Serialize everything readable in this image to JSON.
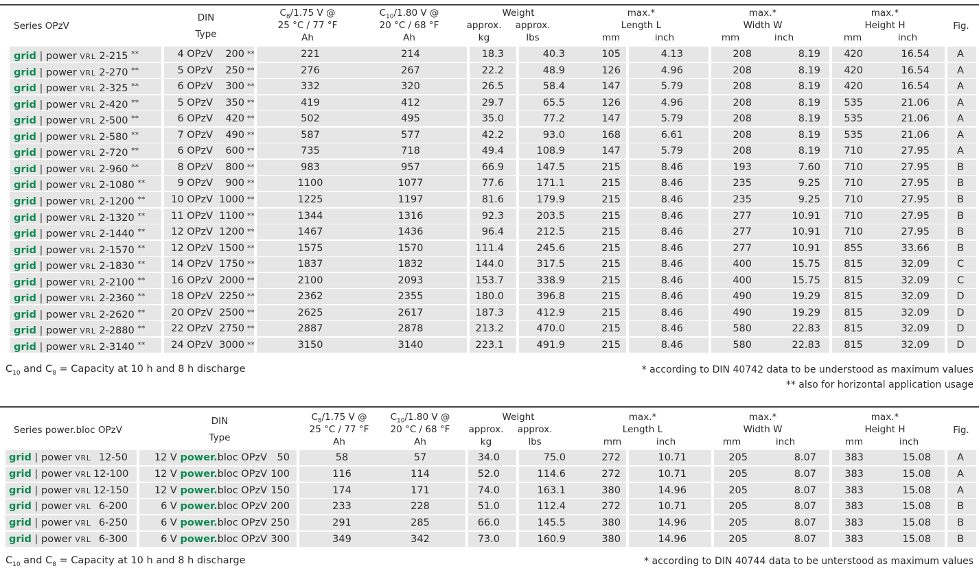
{
  "table1": {
    "series_label": "Series OPzV",
    "din_label": "DIN",
    "type_label": "Type",
    "c8": {
      "pre": "C",
      "sub": "8",
      "post": "/1.75 V @",
      "line2": "25 °C / 77 °F",
      "unit": "Ah"
    },
    "c10": {
      "pre": "C",
      "sub": "10",
      "post": "/1.80 V @",
      "line2": "20 °C / 68 °F",
      "unit": "Ah"
    },
    "weight": {
      "label": "Weight",
      "approx1": "approx.",
      "approx2": "approx.",
      "kg": "kg",
      "lbs": "lbs"
    },
    "length": {
      "max": "max.*",
      "label": "Length L",
      "mm": "mm",
      "inch": "inch"
    },
    "width": {
      "max": "max.*",
      "label": "Width W",
      "mm": "mm",
      "inch": "inch"
    },
    "height": {
      "max": "max.*",
      "label": "Height H",
      "mm": "mm",
      "inch": "inch"
    },
    "fig_label": "Fig.",
    "rows": [
      {
        "grid": "grid",
        "power": "power",
        "vrl": "VRL",
        "model": "2-215",
        "stars": "**",
        "din": "4 OPzV",
        "dinv": "200",
        "dinstars": "**",
        "c8": "221",
        "c10": "214",
        "kg": "18.3",
        "lbs": "40.3",
        "lmm": "105",
        "lin": "4.13",
        "wmm": "208",
        "win": "8.19",
        "hmm": "420",
        "hin": "16.54",
        "fig": "A"
      },
      {
        "grid": "grid",
        "power": "power",
        "vrl": "VRL",
        "model": "2-270",
        "stars": "**",
        "din": "5 OPzV",
        "dinv": "250",
        "dinstars": "**",
        "c8": "276",
        "c10": "267",
        "kg": "22.2",
        "lbs": "48.9",
        "lmm": "126",
        "lin": "4.96",
        "wmm": "208",
        "win": "8.19",
        "hmm": "420",
        "hin": "16.54",
        "fig": "A"
      },
      {
        "grid": "grid",
        "power": "power",
        "vrl": "VRL",
        "model": "2-325",
        "stars": "**",
        "din": "6 OPzV",
        "dinv": "300",
        "dinstars": "**",
        "c8": "332",
        "c10": "320",
        "kg": "26.5",
        "lbs": "58.4",
        "lmm": "147",
        "lin": "5.79",
        "wmm": "208",
        "win": "8.19",
        "hmm": "420",
        "hin": "16.54",
        "fig": "A"
      },
      {
        "grid": "grid",
        "power": "power",
        "vrl": "VRL",
        "model": "2-420",
        "stars": "**",
        "din": "5 OPzV",
        "dinv": "350",
        "dinstars": "**",
        "c8": "419",
        "c10": "412",
        "kg": "29.7",
        "lbs": "65.5",
        "lmm": "126",
        "lin": "4.96",
        "wmm": "208",
        "win": "8.19",
        "hmm": "535",
        "hin": "21.06",
        "fig": "A"
      },
      {
        "grid": "grid",
        "power": "power",
        "vrl": "VRL",
        "model": "2-500",
        "stars": "**",
        "din": "6 OPzV",
        "dinv": "420",
        "dinstars": "**",
        "c8": "502",
        "c10": "495",
        "kg": "35.0",
        "lbs": "77.2",
        "lmm": "147",
        "lin": "5.79",
        "wmm": "208",
        "win": "8.19",
        "hmm": "535",
        "hin": "21.06",
        "fig": "A"
      },
      {
        "grid": "grid",
        "power": "power",
        "vrl": "VRL",
        "model": "2-580",
        "stars": "**",
        "din": "7 OPzV",
        "dinv": "490",
        "dinstars": "**",
        "c8": "587",
        "c10": "577",
        "kg": "42.2",
        "lbs": "93.0",
        "lmm": "168",
        "lin": "6.61",
        "wmm": "208",
        "win": "8.19",
        "hmm": "535",
        "hin": "21.06",
        "fig": "A"
      },
      {
        "grid": "grid",
        "power": "power",
        "vrl": "VRL",
        "model": "2-720",
        "stars": "**",
        "din": "6 OPzV",
        "dinv": "600",
        "dinstars": "**",
        "c8": "735",
        "c10": "718",
        "kg": "49.4",
        "lbs": "108.9",
        "lmm": "147",
        "lin": "5.79",
        "wmm": "208",
        "win": "8.19",
        "hmm": "710",
        "hin": "27.95",
        "fig": "A"
      },
      {
        "grid": "grid",
        "power": "power",
        "vrl": "VRL",
        "model": "2-960",
        "stars": "**",
        "din": "8 OPzV",
        "dinv": "800",
        "dinstars": "**",
        "c8": "983",
        "c10": "957",
        "kg": "66.9",
        "lbs": "147.5",
        "lmm": "215",
        "lin": "8.46",
        "wmm": "193",
        "win": "7.60",
        "hmm": "710",
        "hin": "27.95",
        "fig": "B"
      },
      {
        "grid": "grid",
        "power": "power",
        "vrl": "VRL",
        "model": "2-1080",
        "stars": "**",
        "din": "9 OPzV",
        "dinv": "900",
        "dinstars": "**",
        "c8": "1100",
        "c10": "1077",
        "kg": "77.6",
        "lbs": "171.1",
        "lmm": "215",
        "lin": "8.46",
        "wmm": "235",
        "win": "9.25",
        "hmm": "710",
        "hin": "27.95",
        "fig": "B"
      },
      {
        "grid": "grid",
        "power": "power",
        "vrl": "VRL",
        "model": "2-1200",
        "stars": "**",
        "din": "10 OPzV",
        "dinv": "1000",
        "dinstars": "**",
        "c8": "1225",
        "c10": "1197",
        "kg": "81.6",
        "lbs": "179.9",
        "lmm": "215",
        "lin": "8.46",
        "wmm": "235",
        "win": "9.25",
        "hmm": "710",
        "hin": "27.95",
        "fig": "B"
      },
      {
        "grid": "grid",
        "power": "power",
        "vrl": "VRL",
        "model": "2-1320",
        "stars": "**",
        "din": "11 OPzV",
        "dinv": "1100",
        "dinstars": "**",
        "c8": "1344",
        "c10": "1316",
        "kg": "92.3",
        "lbs": "203.5",
        "lmm": "215",
        "lin": "8.46",
        "wmm": "277",
        "win": "10.91",
        "hmm": "710",
        "hin": "27.95",
        "fig": "B"
      },
      {
        "grid": "grid",
        "power": "power",
        "vrl": "VRL",
        "model": "2-1440",
        "stars": "**",
        "din": "12 OPzV",
        "dinv": "1200",
        "dinstars": "**",
        "c8": "1467",
        "c10": "1436",
        "kg": "96.4",
        "lbs": "212.5",
        "lmm": "215",
        "lin": "8.46",
        "wmm": "277",
        "win": "10.91",
        "hmm": "710",
        "hin": "27.95",
        "fig": "B"
      },
      {
        "grid": "grid",
        "power": "power",
        "vrl": "VRL",
        "model": "2-1570",
        "stars": "**",
        "din": "12 OPzV",
        "dinv": "1500",
        "dinstars": "**",
        "c8": "1575",
        "c10": "1570",
        "kg": "111.4",
        "lbs": "245.6",
        "lmm": "215",
        "lin": "8.46",
        "wmm": "277",
        "win": "10.91",
        "hmm": "855",
        "hin": "33.66",
        "fig": "B"
      },
      {
        "grid": "grid",
        "power": "power",
        "vrl": "VRL",
        "model": "2-1830",
        "stars": "**",
        "din": "14 OPzV",
        "dinv": "1750",
        "dinstars": "**",
        "c8": "1837",
        "c10": "1832",
        "kg": "144.0",
        "lbs": "317.5",
        "lmm": "215",
        "lin": "8.46",
        "wmm": "400",
        "win": "15.75",
        "hmm": "815",
        "hin": "32.09",
        "fig": "C"
      },
      {
        "grid": "grid",
        "power": "power",
        "vrl": "VRL",
        "model": "2-2100",
        "stars": "**",
        "din": "16 OPzV",
        "dinv": "2000",
        "dinstars": "**",
        "c8": "2100",
        "c10": "2093",
        "kg": "153.7",
        "lbs": "338.9",
        "lmm": "215",
        "lin": "8.46",
        "wmm": "400",
        "win": "15.75",
        "hmm": "815",
        "hin": "32.09",
        "fig": "C"
      },
      {
        "grid": "grid",
        "power": "power",
        "vrl": "VRL",
        "model": "2-2360",
        "stars": "**",
        "din": "18 OPzV",
        "dinv": "2250",
        "dinstars": "**",
        "c8": "2362",
        "c10": "2355",
        "kg": "180.0",
        "lbs": "396.8",
        "lmm": "215",
        "lin": "8.46",
        "wmm": "490",
        "win": "19.29",
        "hmm": "815",
        "hin": "32.09",
        "fig": "D"
      },
      {
        "grid": "grid",
        "power": "power",
        "vrl": "VRL",
        "model": "2-2620",
        "stars": "**",
        "din": "20 OPzV",
        "dinv": "2500",
        "dinstars": "**",
        "c8": "2625",
        "c10": "2617",
        "kg": "187.3",
        "lbs": "412.9",
        "lmm": "215",
        "lin": "8.46",
        "wmm": "490",
        "win": "19.29",
        "hmm": "815",
        "hin": "32.09",
        "fig": "D"
      },
      {
        "grid": "grid",
        "power": "power",
        "vrl": "VRL",
        "model": "2-2880",
        "stars": "**",
        "din": "22 OPzV",
        "dinv": "2750",
        "dinstars": "**",
        "c8": "2887",
        "c10": "2878",
        "kg": "213.2",
        "lbs": "470.0",
        "lmm": "215",
        "lin": "8.46",
        "wmm": "580",
        "win": "22.83",
        "hmm": "815",
        "hin": "32.09",
        "fig": "D"
      },
      {
        "grid": "grid",
        "power": "power",
        "vrl": "VRL",
        "model": "2-3140",
        "stars": "**",
        "din": "24 OPzV",
        "dinv": "3000",
        "dinstars": "**",
        "c8": "3150",
        "c10": "3140",
        "kg": "223.1",
        "lbs": "491.9",
        "lmm": "215",
        "lin": "8.46",
        "wmm": "580",
        "win": "22.83",
        "hmm": "815",
        "hin": "32.09",
        "fig": "D"
      }
    ],
    "footnote_left": {
      "c10": "C",
      "c10sub": "10",
      "and": " and C",
      "c8sub": "8",
      "rest": " = Capacity at 10 h and 8 h discharge"
    },
    "footnote_right1": "* according to DIN 40742 data to be understood as maximum values",
    "footnote_right2": "** also for horizontal application usage"
  },
  "table2": {
    "series_label": "Series power.bloc OPzV",
    "din_label": "DIN",
    "type_label": "Type",
    "c8": {
      "pre": "C",
      "sub": "8",
      "post": "/1.75 V @",
      "line2": "25 °C / 77 °F",
      "unit": "Ah"
    },
    "c10": {
      "pre": "C",
      "sub": "10",
      "post": "/1.80 V @",
      "line2": "20 °C / 68 °F",
      "unit": "Ah"
    },
    "weight": {
      "label": "Weight",
      "approx1": "approx.",
      "approx2": "approx.",
      "kg": "kg",
      "lbs": "lbs"
    },
    "length": {
      "max": "max.*",
      "label": "Length L",
      "mm": "mm",
      "inch": "inch"
    },
    "width": {
      "max": "max.*",
      "label": "Width W",
      "mm": "mm",
      "inch": "inch"
    },
    "height": {
      "max": "max.*",
      "label": "Height H",
      "mm": "mm",
      "inch": "inch"
    },
    "fig_label": "Fig.",
    "rows": [
      {
        "grid": "grid",
        "power": "power",
        "vrl": "VRL",
        "model": "12-50",
        "volt": "12 V",
        "pb1": "power.",
        "pb2": "bloc OPzV",
        "dinv": "50",
        "c8": "58",
        "c10": "57",
        "kg": "34.0",
        "lbs": "75.0",
        "lmm": "272",
        "lin": "10.71",
        "wmm": "205",
        "win": "8.07",
        "hmm": "383",
        "hin": "15.08",
        "fig": "A"
      },
      {
        "grid": "grid",
        "power": "power",
        "vrl": "VRL",
        "model": "12-100",
        "volt": "12 V",
        "pb1": "power.",
        "pb2": "bloc OPzV",
        "dinv": "100",
        "c8": "116",
        "c10": "114",
        "kg": "52.0",
        "lbs": "114.6",
        "lmm": "272",
        "lin": "10.71",
        "wmm": "205",
        "win": "8.07",
        "hmm": "383",
        "hin": "15.08",
        "fig": "A"
      },
      {
        "grid": "grid",
        "power": "power",
        "vrl": "VRL",
        "model": "12-150",
        "volt": "12 V",
        "pb1": "power.",
        "pb2": "bloc OPzV",
        "dinv": "150",
        "c8": "174",
        "c10": "171",
        "kg": "74.0",
        "lbs": "163.1",
        "lmm": "380",
        "lin": "14.96",
        "wmm": "205",
        "win": "8.07",
        "hmm": "383",
        "hin": "15.08",
        "fig": "A"
      },
      {
        "grid": "grid",
        "power": "power",
        "vrl": "VRL",
        "model": "6-200",
        "volt": "6 V",
        "pb1": "power.",
        "pb2": "bloc OPzV",
        "dinv": "200",
        "c8": "233",
        "c10": "228",
        "kg": "51.0",
        "lbs": "112.4",
        "lmm": "272",
        "lin": "10.71",
        "wmm": "205",
        "win": "8.07",
        "hmm": "383",
        "hin": "15.08",
        "fig": "B"
      },
      {
        "grid": "grid",
        "power": "power",
        "vrl": "VRL",
        "model": "6-250",
        "volt": "6 V",
        "pb1": "power.",
        "pb2": "bloc OPzV",
        "dinv": "250",
        "c8": "291",
        "c10": "285",
        "kg": "66.0",
        "lbs": "145.5",
        "lmm": "380",
        "lin": "14.96",
        "wmm": "205",
        "win": "8.07",
        "hmm": "383",
        "hin": "15.08",
        "fig": "B"
      },
      {
        "grid": "grid",
        "power": "power",
        "vrl": "VRL",
        "model": "6-300",
        "volt": "6 V",
        "pb1": "power.",
        "pb2": "bloc OPzV",
        "dinv": "300",
        "c8": "349",
        "c10": "342",
        "kg": "73.0",
        "lbs": "160.9",
        "lmm": "380",
        "lin": "14.96",
        "wmm": "205",
        "win": "8.07",
        "hmm": "383",
        "hin": "15.08",
        "fig": "B"
      }
    ],
    "footnote_left": {
      "c10": "C",
      "c10sub": "10",
      "and": " and C",
      "c8sub": "8",
      "rest": " = Capacity at 10 h and 8 h discharge"
    },
    "footnote_right1": "* according to DIN 40744 data to be unterstood as maximum values"
  }
}
